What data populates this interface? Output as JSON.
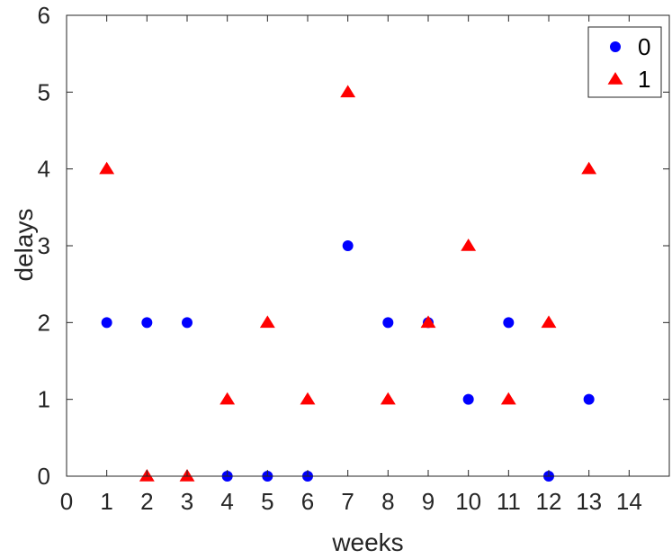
{
  "chart_data": {
    "type": "scatter",
    "title": "",
    "xlabel": "weeks",
    "ylabel": "delays",
    "xlim": [
      0,
      15
    ],
    "ylim": [
      0,
      6
    ],
    "xticks": [
      "0",
      "1",
      "2",
      "3",
      "4",
      "5",
      "6",
      "7",
      "8",
      "9",
      "10",
      "11",
      "12",
      "13",
      "14"
    ],
    "yticks": [
      "0",
      "1",
      "2",
      "3",
      "4",
      "5",
      "6"
    ],
    "grid": false,
    "legend_position": "top-right",
    "series": [
      {
        "name": "0",
        "marker": "circle",
        "color": "#0000ff",
        "x": [
          1,
          2,
          3,
          4,
          5,
          6,
          7,
          8,
          9,
          10,
          11,
          12,
          13
        ],
        "y": [
          2,
          2,
          2,
          0,
          0,
          0,
          3,
          2,
          2,
          1,
          2,
          0,
          1
        ]
      },
      {
        "name": "1",
        "marker": "triangle",
        "color": "#ff0000",
        "x": [
          1,
          2,
          3,
          4,
          5,
          6,
          7,
          8,
          9,
          10,
          11,
          12,
          13
        ],
        "y": [
          4,
          0,
          0,
          1,
          2,
          1,
          5,
          1,
          2,
          3,
          1,
          2,
          4
        ]
      }
    ]
  }
}
